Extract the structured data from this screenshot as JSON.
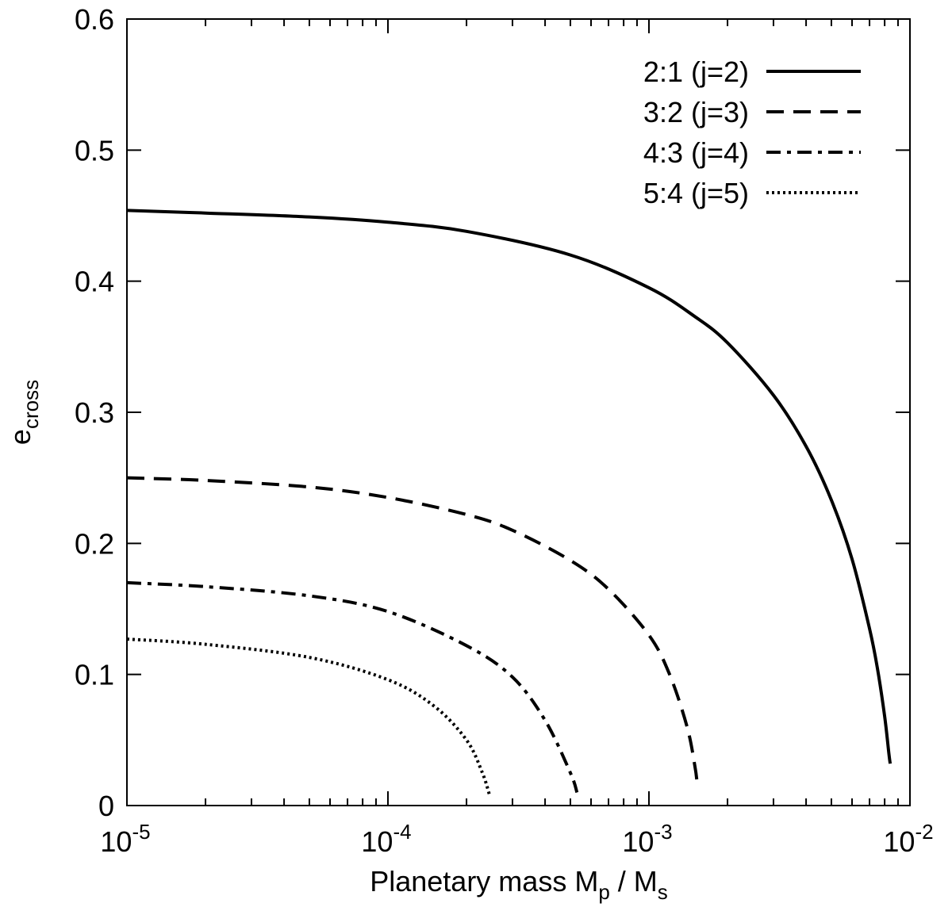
{
  "chart_data": {
    "type": "line",
    "xlabel": {
      "main": "Planetary mass M",
      "sub1": "p",
      "mid": " / M",
      "sub2": "s"
    },
    "ylabel": {
      "main": "e",
      "sub": "cross"
    },
    "x_scale": "log",
    "xlim": [
      1e-05,
      0.01
    ],
    "ylim": [
      0,
      0.6
    ],
    "x_ticks": [
      {
        "value": 1e-05,
        "base": "10",
        "exp": "-5"
      },
      {
        "value": 0.0001,
        "base": "10",
        "exp": "-4"
      },
      {
        "value": 0.001,
        "base": "10",
        "exp": "-3"
      },
      {
        "value": 0.01,
        "base": "10",
        "exp": "-2"
      }
    ],
    "y_ticks": [
      {
        "value": 0,
        "label": "0"
      },
      {
        "value": 0.1,
        "label": "0.1"
      },
      {
        "value": 0.2,
        "label": "0.2"
      },
      {
        "value": 0.3,
        "label": "0.3"
      },
      {
        "value": 0.4,
        "label": "0.4"
      },
      {
        "value": 0.5,
        "label": "0.5"
      },
      {
        "value": 0.6,
        "label": "0.6"
      }
    ],
    "grid": false,
    "legend_position": "top-right",
    "series": [
      {
        "name": "2:1 (j=2)",
        "line_style": "solid",
        "color": "#000000",
        "x": [
          1e-05,
          2e-05,
          5e-05,
          0.0001,
          0.0002,
          0.0005,
          0.001,
          0.0015,
          0.002,
          0.003,
          0.004,
          0.005,
          0.006,
          0.007,
          0.0075,
          0.008,
          0.0083,
          0.0084
        ],
        "y": [
          0.454,
          0.452,
          0.449,
          0.445,
          0.438,
          0.42,
          0.395,
          0.373,
          0.353,
          0.313,
          0.274,
          0.233,
          0.188,
          0.135,
          0.105,
          0.068,
          0.04,
          0.032
        ]
      },
      {
        "name": "3:2 (j=3)",
        "line_style": "dashed",
        "color": "#000000",
        "x": [
          1e-05,
          2e-05,
          5e-05,
          0.0001,
          0.0002,
          0.0003,
          0.0005,
          0.0007,
          0.001,
          0.0012,
          0.0014,
          0.0015,
          0.00153
        ],
        "y": [
          0.25,
          0.248,
          0.243,
          0.235,
          0.222,
          0.21,
          0.187,
          0.165,
          0.13,
          0.1,
          0.06,
          0.03,
          0.017
        ]
      },
      {
        "name": "4:3 (j=4)",
        "line_style": "dashdot",
        "color": "#000000",
        "x": [
          1e-05,
          2e-05,
          5e-05,
          0.0001,
          0.0002,
          0.0003,
          0.0004,
          0.0005,
          0.00053
        ],
        "y": [
          0.17,
          0.167,
          0.16,
          0.148,
          0.122,
          0.098,
          0.065,
          0.025,
          0.01
        ]
      },
      {
        "name": "5:4 (j=5)",
        "line_style": "dotted",
        "color": "#000000",
        "x": [
          1e-05,
          2e-05,
          5e-05,
          0.0001,
          0.00015,
          0.0002,
          0.00023,
          0.000245
        ],
        "y": [
          0.127,
          0.123,
          0.113,
          0.096,
          0.076,
          0.05,
          0.025,
          0.008
        ]
      }
    ]
  }
}
